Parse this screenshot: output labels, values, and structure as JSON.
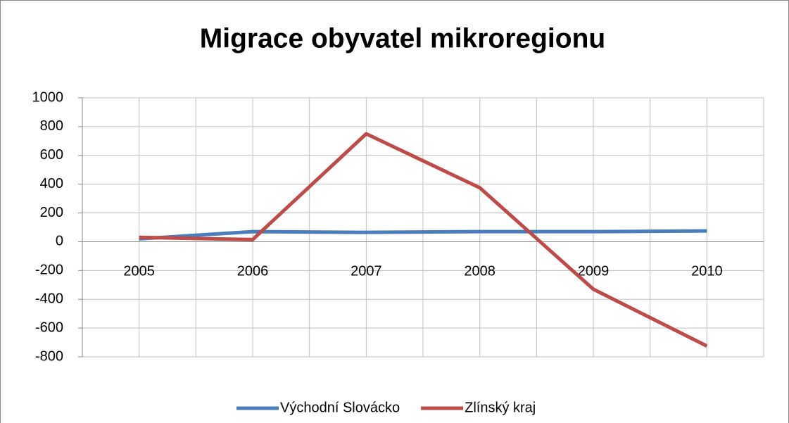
{
  "chart_data": {
    "type": "line",
    "title": "Migrace obyvatel mikroregionu",
    "categories": [
      "2005",
      "2006",
      "2007",
      "2008",
      "2009",
      "2010"
    ],
    "series": [
      {
        "name": "Východní Slovácko",
        "color": "#4a7ebb",
        "values": [
          20,
          70,
          65,
          70,
          70,
          75
        ]
      },
      {
        "name": "Zlínský kraj",
        "color": "#be4b48",
        "values": [
          30,
          15,
          750,
          375,
          -330,
          -725
        ]
      }
    ],
    "ylim": [
      -800,
      1000
    ],
    "yticks": [
      -800,
      -600,
      -400,
      -200,
      0,
      200,
      400,
      600,
      800,
      1000
    ],
    "grid": true,
    "legend": "bottom"
  }
}
